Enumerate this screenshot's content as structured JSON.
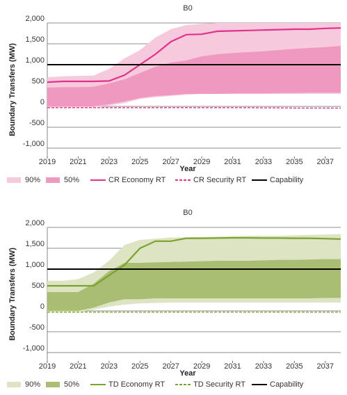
{
  "chart_data": [
    {
      "type": "fan",
      "title": "B0",
      "x_label": "Year",
      "y_label": "Boundary Transfers (MW)",
      "x": [
        2019,
        2020,
        2021,
        2022,
        2023,
        2024,
        2025,
        2026,
        2027,
        2028,
        2029,
        2030,
        2031,
        2032,
        2033,
        2034,
        2035,
        2036,
        2037,
        2038
      ],
      "xlim": [
        2019,
        2038
      ],
      "xticks": [
        2019,
        2021,
        2023,
        2025,
        2027,
        2029,
        2031,
        2033,
        2035,
        2037
      ],
      "ylim": [
        -1200,
        2000
      ],
      "yticks": [
        {
          "value": 2000,
          "label": "2,000"
        },
        {
          "value": 1500,
          "label": "1,500"
        },
        {
          "value": 1000,
          "label": "1,000"
        },
        500,
        0,
        -500,
        {
          "value": -1000,
          "label": "-1,000"
        }
      ],
      "grid": true,
      "series": [
        {
          "name": "90%",
          "style": "band",
          "color": "#f7c9dd",
          "high": [
            700,
            720,
            730,
            740,
            900,
            1150,
            1350,
            1650,
            1850,
            1950,
            1980,
            2000,
            2000,
            2000,
            2000,
            2000,
            2000,
            2000,
            2000,
            2000
          ],
          "low": [
            -20,
            -20,
            -20,
            -20,
            20,
            80,
            180,
            220,
            250,
            280,
            300,
            300,
            300,
            300,
            300,
            300,
            300,
            300,
            300,
            300
          ]
        },
        {
          "name": "50%",
          "style": "band",
          "color": "#ef98c0",
          "high": [
            450,
            460,
            460,
            470,
            550,
            650,
            800,
            950,
            1050,
            1100,
            1200,
            1250,
            1280,
            1300,
            1320,
            1350,
            1380,
            1400,
            1420,
            1450
          ],
          "low": [
            0,
            0,
            0,
            0,
            50,
            120,
            200,
            250,
            270,
            300,
            300,
            300,
            310,
            310,
            310,
            320,
            320,
            330,
            330,
            330
          ]
        },
        {
          "name": "CR Economy RT",
          "style": "solid",
          "color": "#e0328a",
          "values": [
            580,
            600,
            600,
            600,
            610,
            750,
            1000,
            1250,
            1550,
            1720,
            1730,
            1800,
            1810,
            1820,
            1830,
            1840,
            1850,
            1850,
            1870,
            1880
          ]
        },
        {
          "name": "CR Security RT",
          "style": "dashed",
          "color": "#e0328a",
          "values": [
            -30,
            -30,
            -30,
            -30,
            -30,
            -30,
            -30,
            -30,
            -30,
            -30,
            -30,
            -30,
            -30,
            -30,
            -35,
            -35,
            -40,
            -40,
            -40,
            -40
          ]
        },
        {
          "name": "Capability",
          "style": "solid",
          "color": "#000000",
          "values": [
            1000,
            1000,
            1000,
            1000,
            1000,
            1000,
            1000,
            1000,
            1000,
            1000,
            1000,
            1000,
            1000,
            1000,
            1000,
            1000,
            1000,
            1000,
            1000,
            1000
          ]
        }
      ]
    },
    {
      "type": "fan",
      "title": "B0",
      "x_label": "Year",
      "y_label": "Boundary Transfers (MW)",
      "x": [
        2019,
        2020,
        2021,
        2022,
        2023,
        2024,
        2025,
        2026,
        2027,
        2028,
        2029,
        2030,
        2031,
        2032,
        2033,
        2034,
        2035,
        2036,
        2037,
        2038
      ],
      "xlim": [
        2019,
        2038
      ],
      "xticks": [
        2019,
        2021,
        2023,
        2025,
        2027,
        2029,
        2031,
        2033,
        2035,
        2037
      ],
      "ylim": [
        -1200,
        2000
      ],
      "yticks": [
        {
          "value": 2000,
          "label": "2,000"
        },
        {
          "value": 1500,
          "label": "1,500"
        },
        {
          "value": 1000,
          "label": "1,000"
        },
        500,
        0,
        -500,
        {
          "value": -1000,
          "label": "-1,000"
        }
      ],
      "grid": true,
      "series": [
        {
          "name": "90%",
          "style": "band",
          "color": "#dde4c4",
          "high": [
            720,
            720,
            760,
            920,
            1200,
            1580,
            1700,
            1730,
            1760,
            1760,
            1770,
            1780,
            1790,
            1800,
            1800,
            1800,
            1810,
            1820,
            1830,
            1840
          ],
          "low": [
            -20,
            -20,
            -20,
            30,
            100,
            150,
            180,
            190,
            200,
            200,
            200,
            200,
            200,
            200,
            200,
            200,
            200,
            200,
            200,
            200
          ]
        },
        {
          "name": "50%",
          "style": "band",
          "color": "#a9be72",
          "high": [
            450,
            450,
            450,
            650,
            950,
            1150,
            1150,
            1160,
            1170,
            1180,
            1190,
            1200,
            1200,
            1200,
            1210,
            1220,
            1220,
            1230,
            1240,
            1240
          ],
          "low": [
            0,
            0,
            0,
            80,
            200,
            280,
            280,
            300,
            300,
            300,
            300,
            300,
            300,
            300,
            300,
            300,
            300,
            300,
            310,
            310
          ]
        },
        {
          "name": "TD Economy RT",
          "style": "solid",
          "color": "#7ba12e",
          "values": [
            600,
            600,
            600,
            600,
            850,
            1100,
            1500,
            1670,
            1670,
            1740,
            1740,
            1745,
            1750,
            1750,
            1745,
            1745,
            1740,
            1740,
            1730,
            1720
          ]
        },
        {
          "name": "TD Security RT",
          "style": "dashed",
          "color": "#7ba12e",
          "values": [
            -30,
            -30,
            -30,
            -30,
            -30,
            -30,
            -30,
            -30,
            -30,
            -30,
            -30,
            -30,
            -30,
            -30,
            -30,
            -30,
            -30,
            -30,
            -30,
            -30
          ]
        },
        {
          "name": "Capability",
          "style": "solid",
          "color": "#000000",
          "values": [
            1000,
            1000,
            1000,
            1000,
            1000,
            1000,
            1000,
            1000,
            1000,
            1000,
            1000,
            1000,
            1000,
            1000,
            1000,
            1000,
            1000,
            1000,
            1000,
            1000
          ]
        }
      ]
    }
  ]
}
